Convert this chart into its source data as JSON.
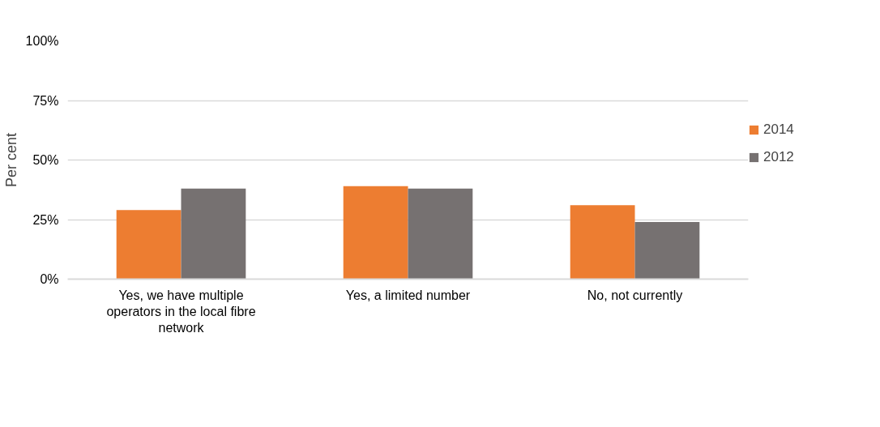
{
  "chart_data": {
    "type": "bar",
    "ylabel": "Per cent",
    "categories": [
      "Yes, we have multiple operators in the local fibre network",
      "Yes, a limited number",
      "No, not currently"
    ],
    "series": [
      {
        "name": "2014",
        "color": "#ed7d31",
        "values": [
          29,
          39,
          31
        ]
      },
      {
        "name": "2012",
        "color": "#767171",
        "values": [
          38,
          38,
          24
        ]
      }
    ],
    "ylim": [
      0,
      100
    ],
    "yticks": [
      {
        "value": 0,
        "label": "0%"
      },
      {
        "value": 25,
        "label": "25%"
      },
      {
        "value": 50,
        "label": "50%"
      },
      {
        "value": 75,
        "label": "75%"
      },
      {
        "value": 100,
        "label": "100%"
      }
    ],
    "grid": "y",
    "legend": "right"
  }
}
